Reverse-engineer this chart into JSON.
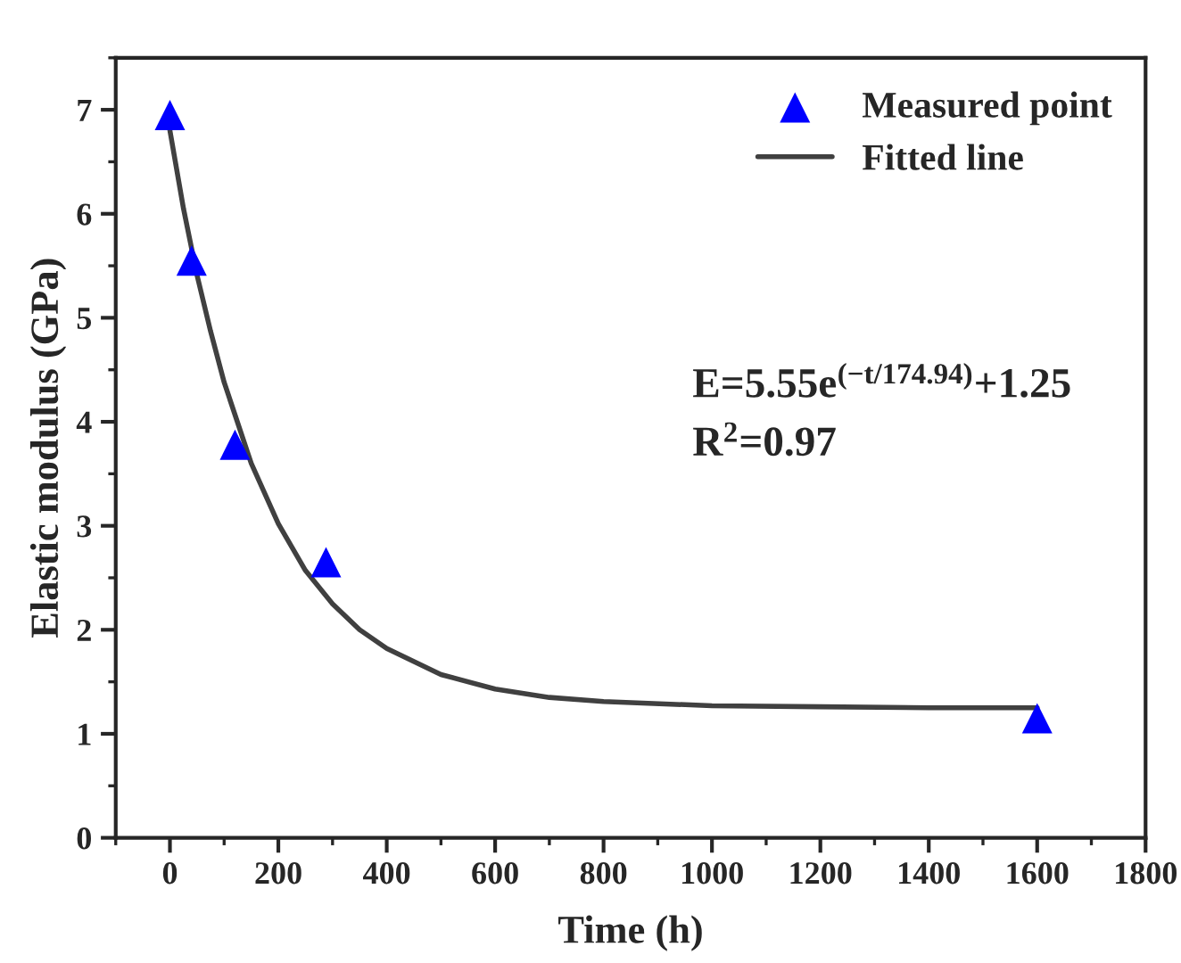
{
  "chart_data": {
    "type": "scatter",
    "xlabel": "Time (h)",
    "ylabel": "Elastic modulus (GPa)",
    "series": [
      {
        "name": "Measured point",
        "color": "#0000ff",
        "marker": "triangle",
        "x": [
          0,
          40,
          120,
          288,
          1600
        ],
        "values": [
          6.95,
          5.55,
          3.78,
          2.65,
          1.15
        ]
      },
      {
        "name": "Fitted line",
        "type": "line",
        "color": "#404040",
        "marker": "none",
        "line_style": "solid",
        "x": [
          0,
          25,
          50,
          75,
          100,
          150,
          200,
          250,
          300,
          350,
          400,
          500,
          600,
          700,
          800,
          1000,
          1200,
          1400,
          1600
        ],
        "values": [
          6.8,
          6.05,
          5.41,
          4.87,
          4.38,
          3.6,
          3.02,
          2.57,
          2.25,
          2.0,
          1.82,
          1.57,
          1.43,
          1.35,
          1.31,
          1.27,
          1.26,
          1.25,
          1.25
        ]
      }
    ],
    "xlim": [
      -100,
      1800
    ],
    "xticks": [
      0,
      200,
      400,
      600,
      800,
      1000,
      1200,
      1400,
      1600,
      1800
    ],
    "ylim": [
      0,
      7.5
    ],
    "yticks": [
      0,
      1,
      2,
      3,
      4,
      5,
      6,
      7
    ],
    "annotations": [
      "E=5.55e$^{(−t/174.94)}$+1.25",
      "R$^{2}$=0.97"
    ],
    "legend": "top right",
    "grid": false
  }
}
